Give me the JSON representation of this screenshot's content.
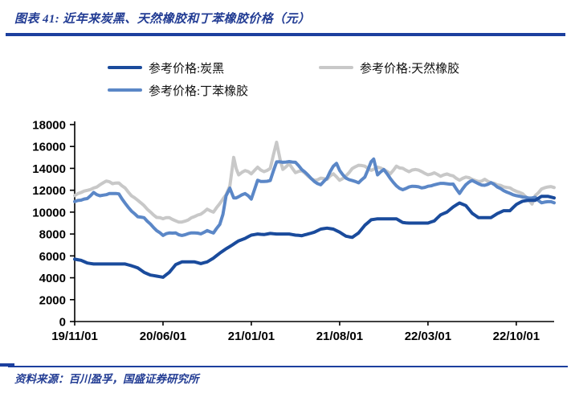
{
  "header": {
    "title": "图表 41: 近年来炭黑、天然橡胶和丁苯橡胶价格（元）"
  },
  "footer": {
    "source": "资料来源：百川盈孚，国盛证券研究所"
  },
  "accent_colors": {
    "rule_blue": "#1C3F9E",
    "title_blue": "#233D94"
  },
  "chart_data": {
    "type": "line",
    "title": "近年来炭黑、天然橡胶和丁苯橡胶价格（元）",
    "xlabel": "",
    "ylabel": "",
    "x_unit": "months since 2019-11-01",
    "xlim": [
      0,
      38
    ],
    "ylim": [
      0,
      18000
    ],
    "grid": false,
    "legend_position": "top",
    "axis_color": "#000000",
    "y_ticks": [
      0,
      2000,
      4000,
      6000,
      8000,
      10000,
      12000,
      14000,
      16000,
      18000
    ],
    "x_tick_positions": [
      0,
      7,
      14,
      21,
      28,
      35
    ],
    "x_tick_labels": [
      "19/11/01",
      "20/06/01",
      "21/01/01",
      "21/08/01",
      "22/03/01",
      "22/10/01"
    ],
    "series": [
      {
        "name": "参考价格:炭黑",
        "color": "#1A4B9C",
        "x": [
          0,
          0.5,
          1,
          1.5,
          2,
          3,
          4,
          4.5,
          5,
          5.5,
          6,
          6.5,
          7,
          7.5,
          8,
          8.5,
          9.5,
          10,
          10.5,
          11,
          11.5,
          12,
          12.5,
          13,
          13.5,
          14,
          14.5,
          15,
          15.5,
          16,
          17,
          17.5,
          18,
          18.5,
          19,
          19.5,
          20,
          20.5,
          21,
          21.5,
          22,
          22.5,
          23,
          23.5,
          24,
          25,
          25.5,
          26,
          26.5,
          27.5,
          28,
          28.5,
          29,
          29.5,
          30,
          30.5,
          31,
          31.5,
          32,
          33,
          33.5,
          34,
          34.5,
          35,
          35.5,
          36,
          36.5,
          37,
          37.5,
          38
        ],
        "values": [
          5700,
          5600,
          5350,
          5260,
          5260,
          5260,
          5260,
          5100,
          4900,
          4500,
          4250,
          4150,
          4050,
          4500,
          5200,
          5450,
          5450,
          5300,
          5450,
          5800,
          6250,
          6650,
          7000,
          7380,
          7600,
          7900,
          8000,
          7950,
          8050,
          8000,
          8000,
          7900,
          7850,
          8000,
          8170,
          8450,
          8540,
          8450,
          8170,
          7800,
          7690,
          8100,
          8800,
          9300,
          9390,
          9390,
          9390,
          9050,
          9000,
          9000,
          9000,
          9200,
          9750,
          10000,
          10480,
          10840,
          10600,
          9900,
          9500,
          9500,
          9870,
          10130,
          10130,
          10700,
          11000,
          11080,
          11080,
          11450,
          11450,
          11300
        ]
      },
      {
        "name": "参考价格:天然橡胶",
        "color": "#C8C8C8",
        "x": [
          0,
          0.5,
          1,
          1.5,
          2,
          2.5,
          3,
          3.5,
          4,
          4.5,
          5,
          5.5,
          6,
          6.5,
          7,
          7.5,
          8,
          8.5,
          9,
          9.5,
          10,
          10.5,
          11,
          11.5,
          12,
          12.3,
          12.6,
          12.8,
          13,
          13.5,
          14,
          14.5,
          15,
          15.5,
          16,
          16.3,
          16.5,
          17,
          17.5,
          18,
          18.5,
          19,
          19.5,
          20,
          20.5,
          21,
          21.5,
          22,
          22.5,
          23,
          23.5,
          24,
          24.5,
          25,
          25.5,
          26,
          26.5,
          27,
          27.5,
          28,
          28.5,
          29,
          29.5,
          30,
          30.5,
          31,
          31.5,
          32,
          32.5,
          33,
          33.5,
          34,
          34.5,
          35,
          35.5,
          36,
          36.25,
          36.5,
          37,
          37.5,
          38
        ],
        "values": [
          11500,
          11800,
          12000,
          12200,
          12500,
          12850,
          12600,
          12650,
          12200,
          11500,
          11100,
          10600,
          10000,
          9500,
          9400,
          9500,
          9200,
          9100,
          9300,
          9600,
          9800,
          10250,
          10000,
          10800,
          11600,
          12400,
          15000,
          14000,
          13400,
          13800,
          13500,
          14100,
          13700,
          14000,
          16400,
          14700,
          13900,
          14400,
          13600,
          13800,
          13300,
          12900,
          13100,
          13000,
          13500,
          12900,
          13300,
          14000,
          14300,
          14200,
          13800,
          14100,
          13900,
          13500,
          14200,
          14000,
          13700,
          13900,
          13700,
          13400,
          13600,
          13300,
          13500,
          13300,
          12900,
          13200,
          13000,
          12800,
          13000,
          12700,
          12500,
          12300,
          12200,
          11900,
          11700,
          11100,
          10750,
          11500,
          12100,
          12300,
          12250
        ]
      },
      {
        "name": "参考价格:丁苯橡胶",
        "color": "#5B87C7",
        "x": [
          0,
          0.5,
          1,
          1.5,
          2,
          2.5,
          3,
          3.5,
          4,
          4.5,
          5,
          5.5,
          6,
          6.5,
          7,
          7.5,
          8,
          8.5,
          9,
          9.5,
          10,
          10.5,
          11,
          11.5,
          11.75,
          12,
          12.3,
          12.6,
          13,
          13.5,
          14,
          14.5,
          15,
          15.5,
          16,
          16.5,
          17,
          17.5,
          18,
          18.5,
          19,
          19.5,
          20,
          20.5,
          20.75,
          21,
          21.5,
          22,
          22.5,
          23,
          23.5,
          23.7,
          24,
          24.5,
          25,
          25.5,
          26,
          26.5,
          27,
          27.5,
          28,
          28.5,
          29,
          29.5,
          30,
          30.5,
          31,
          31.5,
          32,
          32.5,
          33,
          33.5,
          34,
          34.5,
          35,
          35.5,
          36,
          36.5,
          37,
          37.5,
          38
        ],
        "values": [
          10950,
          11100,
          11250,
          11800,
          11500,
          11600,
          11700,
          11650,
          10800,
          10100,
          9600,
          9500,
          8900,
          8300,
          7870,
          8100,
          8100,
          7870,
          8050,
          8100,
          8000,
          8300,
          8100,
          8900,
          9800,
          11500,
          12200,
          11300,
          11400,
          11700,
          11200,
          12900,
          12800,
          12900,
          14600,
          14550,
          14600,
          14550,
          13900,
          13400,
          12800,
          12500,
          13100,
          14200,
          14450,
          13800,
          13100,
          12900,
          12700,
          13200,
          14600,
          14850,
          13400,
          13900,
          13100,
          12400,
          12050,
          12300,
          12350,
          12200,
          12350,
          12500,
          12650,
          12600,
          12550,
          11700,
          12500,
          12900,
          12600,
          12450,
          12700,
          12300,
          11950,
          11700,
          11500,
          11400,
          11300,
          11350,
          10840,
          10950,
          10850
        ]
      }
    ]
  }
}
